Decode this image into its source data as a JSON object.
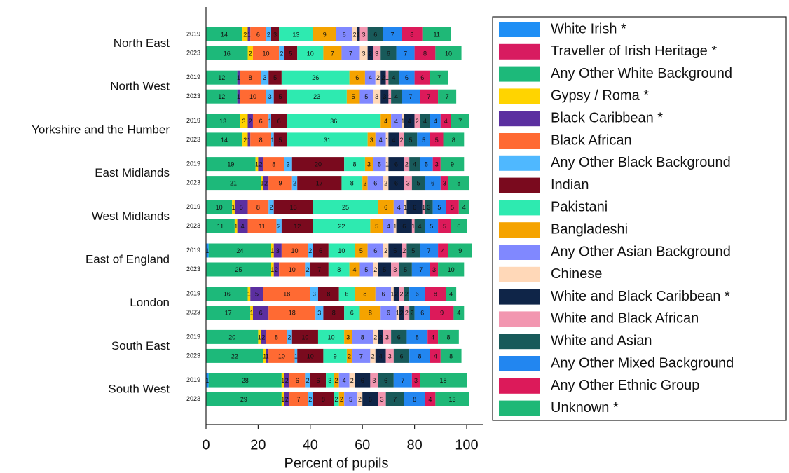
{
  "chart_data": {
    "type": "stacked-bar-horizontal",
    "x_label": "Percent of pupils",
    "xlim": [
      0,
      100
    ],
    "xticks": [
      0,
      20,
      40,
      60,
      80,
      100
    ],
    "groups": [
      "North East",
      "North West",
      "Yorkshire and the Humber",
      "East Midlands",
      "West Midlands",
      "East of England",
      "London",
      "South East",
      "South West"
    ],
    "categories": [
      "2019",
      "2023",
      "2019",
      "2023",
      "2019",
      "2023",
      "2019",
      "2023",
      "2019",
      "2023",
      "2019",
      "2023",
      "2019",
      "2023",
      "2019",
      "2023",
      "2019",
      "2023"
    ],
    "series": [
      {
        "name": "White Irish *",
        "color": "#1f8ff5",
        "values": [
          0,
          0,
          0,
          0,
          0,
          0,
          0,
          0,
          0,
          0,
          1,
          0,
          0,
          0,
          0,
          0,
          1,
          0
        ]
      },
      {
        "name": "Traveller of Irish Heritage *",
        "color": "#d81b60",
        "values": [
          0,
          0,
          0,
          0,
          0,
          0,
          0,
          0,
          0,
          0,
          0,
          0,
          0,
          0,
          0,
          0,
          0,
          0
        ]
      },
      {
        "name": "Any Other White Background",
        "color": "#1db97a",
        "values": [
          14,
          16,
          12,
          12,
          13,
          14,
          19,
          21,
          10,
          11,
          24,
          25,
          16,
          17,
          20,
          22,
          28,
          29
        ]
      },
      {
        "name": "Gypsy / Roma *",
        "color": "#ffd400",
        "values": [
          2,
          2,
          0,
          0,
          3,
          2,
          1,
          1,
          1,
          1,
          1,
          1,
          1,
          1,
          1,
          1,
          1,
          1
        ]
      },
      {
        "name": "Black Caribbean *",
        "color": "#5b2fa0",
        "values": [
          1,
          0,
          1,
          1,
          2,
          1,
          2,
          2,
          5,
          4,
          3,
          2,
          5,
          6,
          2,
          1,
          2,
          2
        ]
      },
      {
        "name": "Black African",
        "color": "#ff6a33",
        "values": [
          6,
          10,
          8,
          10,
          6,
          8,
          8,
          9,
          8,
          11,
          10,
          10,
          18,
          18,
          8,
          10,
          6,
          7
        ]
      },
      {
        "name": "Any Other Black Background",
        "color": "#4fb8ff",
        "values": [
          2,
          2,
          3,
          3,
          1,
          1,
          3,
          2,
          2,
          2,
          2,
          2,
          3,
          3,
          2,
          1,
          2,
          2
        ]
      },
      {
        "name": "Indian",
        "color": "#7a0a1e",
        "values": [
          3,
          5,
          5,
          5,
          6,
          5,
          20,
          17,
          15,
          12,
          6,
          7,
          8,
          8,
          10,
          10,
          6,
          8
        ]
      },
      {
        "name": "Pakistani",
        "color": "#2eeab0",
        "values": [
          13,
          10,
          26,
          23,
          36,
          31,
          8,
          8,
          25,
          22,
          10,
          8,
          6,
          6,
          10,
          9,
          3,
          2
        ]
      },
      {
        "name": "Bangladeshi",
        "color": "#f5a300",
        "values": [
          9,
          7,
          6,
          5,
          4,
          3,
          3,
          2,
          6,
          5,
          5,
          4,
          8,
          8,
          3,
          2,
          2,
          2
        ]
      },
      {
        "name": "Any Other Asian Background",
        "color": "#8088ff",
        "values": [
          6,
          7,
          4,
          5,
          4,
          4,
          5,
          6,
          4,
          4,
          6,
          5,
          6,
          6,
          8,
          7,
          4,
          5
        ]
      },
      {
        "name": "Chinese",
        "color": "#ffd8b8",
        "values": [
          2,
          3,
          2,
          3,
          1,
          1,
          1,
          2,
          1,
          1,
          2,
          2,
          1,
          1,
          2,
          2,
          2,
          2
        ]
      },
      {
        "name": "White and Black Caribbean *",
        "color": "#0f2548",
        "values": [
          1,
          2,
          2,
          3,
          4,
          4,
          6,
          6,
          6,
          6,
          5,
          5,
          2,
          2,
          2,
          4,
          6,
          6
        ]
      },
      {
        "name": "White and Black African",
        "color": "#f296b0",
        "values": [
          3,
          3,
          1,
          1,
          2,
          2,
          2,
          3,
          1,
          1,
          2,
          3,
          2,
          2,
          3,
          3,
          3,
          3
        ]
      },
      {
        "name": "White and Asian",
        "color": "#185a5a",
        "values": [
          6,
          6,
          4,
          4,
          4,
          5,
          4,
          5,
          3,
          4,
          5,
          5,
          2,
          2,
          6,
          6,
          6,
          7
        ]
      },
      {
        "name": "Any Other Mixed Background",
        "color": "#2286f0",
        "values": [
          7,
          7,
          6,
          7,
          4,
          5,
          5,
          6,
          5,
          5,
          7,
          7,
          6,
          6,
          8,
          8,
          7,
          8
        ]
      },
      {
        "name": "Any Other Ethnic Group",
        "color": "#dc1a5a",
        "values": [
          8,
          8,
          6,
          7,
          4,
          5,
          3,
          3,
          5,
          5,
          4,
          3,
          8,
          9,
          4,
          4,
          3,
          4
        ]
      },
      {
        "name": "Unknown *",
        "color": "#1fb877",
        "values": [
          11,
          10,
          7,
          7,
          7,
          8,
          9,
          8,
          4,
          6,
          9,
          10,
          4,
          4,
          8,
          8,
          18,
          13
        ]
      }
    ]
  }
}
